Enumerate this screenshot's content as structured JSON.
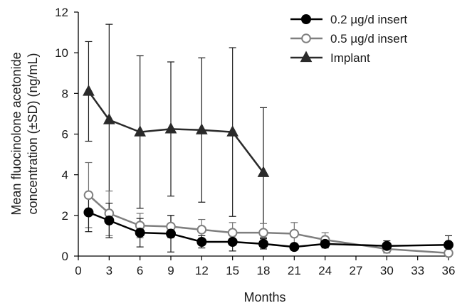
{
  "chart_data": {
    "type": "line",
    "title": "",
    "xlabel": "Months",
    "ylabel": [
      "Mean fluocinolone acetonide",
      "concentration (±SD) (ng/mL)"
    ],
    "xlim": [
      0,
      36
    ],
    "ylim": [
      0,
      12
    ],
    "xticks": [
      0,
      3,
      6,
      9,
      12,
      15,
      18,
      21,
      24,
      27,
      30,
      33,
      36
    ],
    "yticks": [
      0,
      2,
      4,
      6,
      8,
      10,
      12
    ],
    "grid": false,
    "legend_position": "top-right",
    "series": [
      {
        "name": "0.2 µg/d insert",
        "marker": "filled-circle",
        "color": "#000000",
        "points": [
          {
            "x": 1,
            "y": 2.15,
            "sd": 0.95
          },
          {
            "x": 3,
            "y": 1.75,
            "sd": 0.85
          },
          {
            "x": 6,
            "y": 1.15,
            "sd": 0.7
          },
          {
            "x": 9,
            "y": 1.1,
            "sd": 0.9
          },
          {
            "x": 12,
            "y": 0.7,
            "sd": 0.3
          },
          {
            "x": 15,
            "y": 0.7,
            "sd": 0.45
          },
          {
            "x": 18,
            "y": 0.6,
            "sd": 0.25
          },
          {
            "x": 21,
            "y": 0.45,
            "sd": 0.15
          },
          {
            "x": 24,
            "y": 0.6,
            "sd": 0.2
          },
          {
            "x": 30,
            "y": 0.5,
            "sd": 0.25
          },
          {
            "x": 36,
            "y": 0.55,
            "sd": 0.45
          }
        ]
      },
      {
        "name": "0.5 µg/d insert",
        "marker": "open-circle",
        "color": "#7f7f7f",
        "points": [
          {
            "x": 1,
            "y": 3.0,
            "sd": 1.6
          },
          {
            "x": 3,
            "y": 2.1,
            "sd": 1.1
          },
          {
            "x": 6,
            "y": 1.5,
            "sd": 0.6
          },
          {
            "x": 9,
            "y": 1.45,
            "sd": 0.55
          },
          {
            "x": 12,
            "y": 1.3,
            "sd": 0.5
          },
          {
            "x": 15,
            "y": 1.15,
            "sd": 0.5
          },
          {
            "x": 18,
            "y": 1.15,
            "sd": 0.45
          },
          {
            "x": 21,
            "y": 1.1,
            "sd": 0.55
          },
          {
            "x": 24,
            "y": 0.8,
            "sd": 0.35
          },
          {
            "x": 30,
            "y": 0.35,
            "sd": 0.2
          },
          {
            "x": 36,
            "y": 0.15,
            "sd": 0.15
          }
        ]
      },
      {
        "name": "Implant",
        "marker": "filled-triangle",
        "color": "#2a2a2a",
        "points": [
          {
            "x": 1,
            "y": 8.1,
            "sd": 2.45
          },
          {
            "x": 3,
            "y": 6.7,
            "sd": 4.7
          },
          {
            "x": 6,
            "y": 6.1,
            "sd": 3.75
          },
          {
            "x": 9,
            "y": 6.25,
            "sd": 3.3
          },
          {
            "x": 12,
            "y": 6.2,
            "sd": 3.55
          },
          {
            "x": 15,
            "y": 6.1,
            "sd": 4.15
          },
          {
            "x": 18,
            "y": 4.1,
            "sd": 3.2
          }
        ]
      }
    ]
  }
}
